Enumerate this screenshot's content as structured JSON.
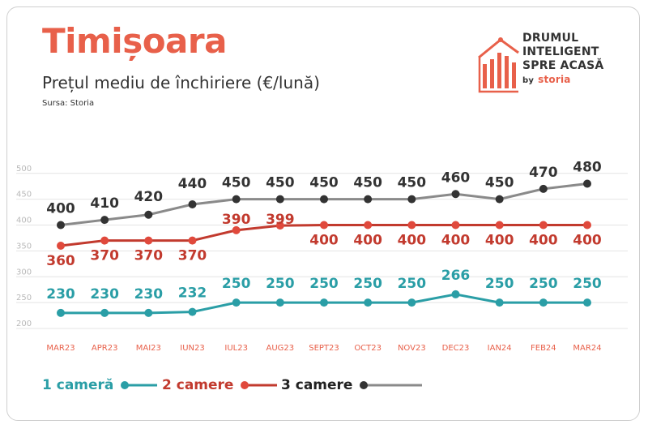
{
  "header": {
    "title": "Timișoara",
    "subtitle": "Prețul mediu de închiriere (€/lună)",
    "source": "Sursa: Storia"
  },
  "logo": {
    "line1": "DRUMUL",
    "line2": "INTELIGENT",
    "line3": "SPRE ACASĂ",
    "by": "by",
    "brand": "storia"
  },
  "colors": {
    "accent": "#e8604a",
    "series_teal": "#2a9ea6",
    "series_red": "#c23a2e",
    "series_gray": "#8a8a8a",
    "marker_gray": "#333333"
  },
  "chart_data": {
    "type": "line",
    "categories": [
      "MAR23",
      "APR23",
      "MAI23",
      "IUN23",
      "IUL23",
      "AUG23",
      "SEPT23",
      "OCT23",
      "NOV23",
      "DEC23",
      "IAN24",
      "FEB24",
      "MAR24"
    ],
    "ylim": [
      200,
      600
    ],
    "yticks": [
      "200",
      "250",
      "300",
      "350",
      "400",
      "450",
      "500"
    ],
    "grid": true,
    "legend_position": "bottom-left",
    "series": [
      {
        "name": "1 cameră",
        "values": [
          230,
          230,
          230,
          232,
          250,
          250,
          250,
          250,
          250,
          266,
          250,
          250,
          250
        ],
        "color": "#2a9ea6",
        "marker": "#2a9ea6",
        "labels": [
          "230",
          "230",
          "230",
          "232",
          "250",
          "250",
          "250",
          "250",
          "250",
          "266",
          "250",
          "250",
          "250"
        ]
      },
      {
        "name": "2 camere",
        "values": [
          360,
          370,
          370,
          370,
          390,
          399,
          400,
          400,
          400,
          400,
          400,
          400,
          400
        ],
        "color": "#c23a2e",
        "marker": "#e0493c",
        "labels": [
          "360",
          "370",
          "370",
          "370",
          "390",
          "399",
          "400",
          "400",
          "400",
          "400",
          "400",
          "400",
          "400"
        ]
      },
      {
        "name": "3 camere",
        "values": [
          400,
          410,
          420,
          440,
          450,
          450,
          450,
          450,
          450,
          460,
          450,
          470,
          480
        ],
        "color": "#8a8a8a",
        "marker": "#333333",
        "labels": [
          "400",
          "410",
          "420",
          "440",
          "450",
          "450",
          "450",
          "450",
          "450",
          "460",
          "450",
          "470",
          "480"
        ]
      }
    ]
  }
}
